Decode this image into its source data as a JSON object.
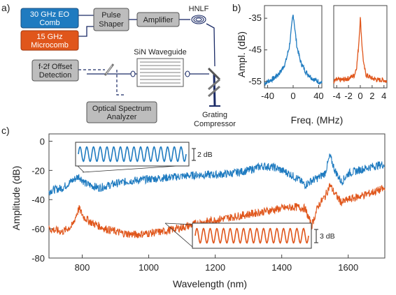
{
  "panel_a": {
    "letter": "a)",
    "boxes": {
      "eo_comb": [
        "30 GHz EO",
        "Comb"
      ],
      "microcomb": [
        "15 GHz",
        "Microcomb"
      ],
      "pulse_shaper": [
        "Pulse",
        "Shaper"
      ],
      "amplifier": "Amplifier",
      "offset_detection": [
        "f-2f Offset",
        "Detection"
      ],
      "osa": [
        "Optical Spectrum",
        "Analyzer"
      ]
    },
    "labels": {
      "hnlf": "HNLF",
      "waveguide": "SiN Waveguide",
      "grating": [
        "Grating",
        "Compressor"
      ]
    },
    "colors": {
      "eo_comb": "#1f7bc0",
      "microcomb": "#e0561b",
      "gray_box": "#bdbdbd",
      "line": "#1a2a66"
    }
  },
  "panel_b": {
    "letter": "b)",
    "ylabel": "Ampl. (dB)",
    "xlabel": "Freq. (MHz)",
    "yticks": [
      "-35",
      "-45",
      "-55"
    ],
    "left_xticks": [
      "-40",
      "0",
      "40"
    ],
    "right_xticks": [
      "-4",
      "-2",
      "0",
      "2",
      "4"
    ]
  },
  "panel_c": {
    "letter": "c)",
    "ylabel": "Amplitude (dB)",
    "xlabel": "Wavelength (nm)",
    "yticks": [
      "0",
      "-20",
      "-40",
      "-60",
      "-80"
    ],
    "xticks": [
      "800",
      "1000",
      "1200",
      "1400",
      "1600"
    ],
    "inset_top_scale": "2 dB",
    "inset_bottom_scale": "3 dB"
  },
  "chart_data": [
    {
      "type": "line",
      "panel": "b-left",
      "xlabel": "Freq. (MHz)",
      "ylabel": "Ampl. (dB)",
      "xlim": [
        -45,
        45
      ],
      "ylim": [
        -57,
        -31
      ],
      "series": [
        {
          "color": "#1f7bc0",
          "x": [
            -45,
            -40,
            -30,
            -20,
            -12,
            -6,
            -3,
            -1,
            0,
            1,
            3,
            6,
            12,
            20,
            30,
            40,
            45
          ],
          "y": [
            -55.5,
            -55,
            -54,
            -52,
            -49,
            -44,
            -39,
            -35,
            -34,
            -35,
            -39,
            -44,
            -49,
            -52,
            -54,
            -55,
            -55.5
          ]
        }
      ]
    },
    {
      "type": "line",
      "panel": "b-right",
      "xlabel": "Freq. (MHz)",
      "xlim": [
        -4.5,
        4.5
      ],
      "ylim": [
        -57,
        -31
      ],
      "series": [
        {
          "color": "#e0561b",
          "x": [
            -4.5,
            -4,
            -3,
            -2,
            -1,
            -0.6,
            -0.3,
            -0.1,
            0,
            0.1,
            0.3,
            0.6,
            1,
            2,
            3,
            4,
            4.5
          ],
          "y": [
            -55,
            -54.5,
            -54.5,
            -54,
            -53,
            -50,
            -44,
            -38,
            -35,
            -38,
            -44,
            -50,
            -53,
            -54,
            -54.5,
            -54.5,
            -55
          ]
        }
      ]
    },
    {
      "type": "line",
      "panel": "c",
      "xlabel": "Wavelength (nm)",
      "ylabel": "Amplitude (dB)",
      "xlim": [
        700,
        1710
      ],
      "ylim": [
        -80,
        5
      ],
      "series": [
        {
          "color": "#1f7bc0",
          "x": [
            700,
            740,
            770,
            790,
            810,
            850,
            900,
            950,
            1000,
            1050,
            1100,
            1150,
            1200,
            1250,
            1300,
            1340,
            1380,
            1420,
            1450,
            1470,
            1490,
            1510,
            1530,
            1545,
            1560,
            1580,
            1600,
            1630,
            1660,
            1700
          ],
          "y": [
            -34,
            -32,
            -27,
            -24,
            -29,
            -32,
            -29,
            -27,
            -26,
            -25,
            -24,
            -23,
            -23,
            -22,
            -20,
            -17,
            -18,
            -22,
            -26,
            -30,
            -27,
            -25,
            -22,
            -10,
            -20,
            -28,
            -22,
            -20,
            -18,
            -16
          ]
        },
        {
          "color": "#e0561b",
          "x": [
            700,
            740,
            770,
            790,
            805,
            830,
            870,
            920,
            960,
            1000,
            1040,
            1080,
            1120,
            1150,
            1200,
            1250,
            1300,
            1350,
            1400,
            1440,
            1470,
            1490,
            1510,
            1530,
            1545,
            1560,
            1580,
            1600,
            1630,
            1660,
            1700
          ],
          "y": [
            -60,
            -62,
            -58,
            -46,
            -52,
            -56,
            -60,
            -63,
            -64,
            -63,
            -62,
            -60,
            -58,
            -56,
            -54,
            -52,
            -50,
            -48,
            -46,
            -45,
            -46,
            -58,
            -44,
            -38,
            -30,
            -36,
            -42,
            -40,
            -38,
            -36,
            -33
          ]
        }
      ]
    }
  ]
}
